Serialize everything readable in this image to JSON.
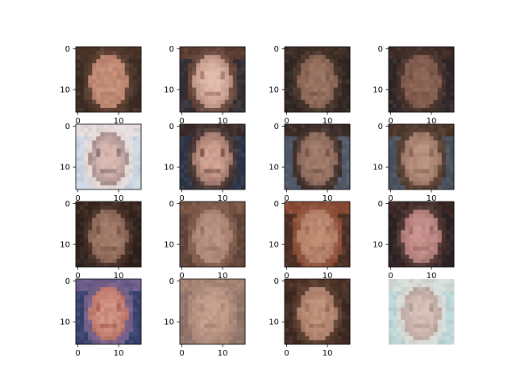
{
  "chart_data": {
    "type": "image_grid",
    "rows": 4,
    "cols": 4,
    "image_resolution": 16,
    "x_ticks": [
      0,
      10
    ],
    "y_ticks": [
      0,
      10
    ],
    "tiles": [
      {
        "row": 0,
        "col": 0,
        "x_ticks_visible": false,
        "palette": {
          "bg": "#3a2a22",
          "hair": "#4a3226",
          "skin": "#c89078",
          "shade": "#a87060"
        }
      },
      {
        "row": 0,
        "col": 1,
        "x_ticks_visible": false,
        "palette": {
          "bg": "#2a2a36",
          "hair": "#5a3a30",
          "skin": "#e0b8a8",
          "shade": "#8a5a4e"
        }
      },
      {
        "row": 0,
        "col": 2,
        "x_ticks_visible": false,
        "palette": {
          "bg": "#2e2420",
          "hair": "#3a2a22",
          "skin": "#9a7260",
          "shade": "#6a4a3c"
        }
      },
      {
        "row": 0,
        "col": 3,
        "x_ticks_visible": false,
        "palette": {
          "bg": "#2a2628",
          "hair": "#3e2a26",
          "skin": "#8a6252",
          "shade": "#6a4a40"
        }
      },
      {
        "row": 1,
        "col": 0,
        "x_ticks_visible": false,
        "palette": {
          "bg": "#c8d8e8",
          "hair": "#e8e0e0",
          "skin": "#d8b8b0",
          "shade": "#6a5a64"
        }
      },
      {
        "row": 1,
        "col": 1,
        "x_ticks_visible": false,
        "palette": {
          "bg": "#2a3850",
          "hair": "#3a2a2a",
          "skin": "#d0a090",
          "shade": "#5a3a34"
        }
      },
      {
        "row": 1,
        "col": 2,
        "x_ticks_visible": false,
        "palette": {
          "bg": "#5a6a80",
          "hair": "#3a2a26",
          "skin": "#a07a68",
          "shade": "#6a4a40"
        }
      },
      {
        "row": 1,
        "col": 3,
        "x_ticks_visible": false,
        "palette": {
          "bg": "#4a5a70",
          "hair": "#4a3428",
          "skin": "#b8907c",
          "shade": "#7a5448"
        }
      },
      {
        "row": 2,
        "col": 0,
        "x_ticks_visible": false,
        "palette": {
          "bg": "#2a1e1a",
          "hair": "#3a261e",
          "skin": "#a07866",
          "shade": "#6a4638"
        }
      },
      {
        "row": 2,
        "col": 1,
        "x_ticks_visible": false,
        "palette": {
          "bg": "#5a4038",
          "hair": "#7a5444",
          "skin": "#b89080",
          "shade": "#946e60"
        }
      },
      {
        "row": 2,
        "col": 2,
        "x_ticks_visible": false,
        "palette": {
          "bg": "#3a2620",
          "hair": "#8a4a34",
          "skin": "#c08a70",
          "shade": "#9a6854"
        }
      },
      {
        "row": 2,
        "col": 3,
        "x_ticks_visible": false,
        "palette": {
          "bg": "#2a2024",
          "hair": "#3a2624",
          "skin": "#c8908c",
          "shade": "#8a5a56"
        }
      },
      {
        "row": 3,
        "col": 0,
        "x_ticks_visible": true,
        "palette": {
          "bg": "#2a3a66",
          "hair": "#6a5a8a",
          "skin": "#d09080",
          "shade": "#a04a44"
        }
      },
      {
        "row": 3,
        "col": 1,
        "x_ticks_visible": true,
        "palette": {
          "bg": "#8a7068",
          "hair": "#a88474",
          "skin": "#c8a08c",
          "shade": "#9a7a6c"
        }
      },
      {
        "row": 3,
        "col": 2,
        "x_ticks_visible": true,
        "palette": {
          "bg": "#3a2620",
          "hair": "#4a3024",
          "skin": "#c09078",
          "shade": "#8a6050"
        }
      },
      {
        "row": 3,
        "col": 3,
        "x_ticks_visible": false,
        "palette": {
          "bg": "#b8d8d8",
          "hair": "#d8e0dc",
          "skin": "#d8c0b8",
          "shade": "#9a8a84"
        }
      }
    ]
  }
}
